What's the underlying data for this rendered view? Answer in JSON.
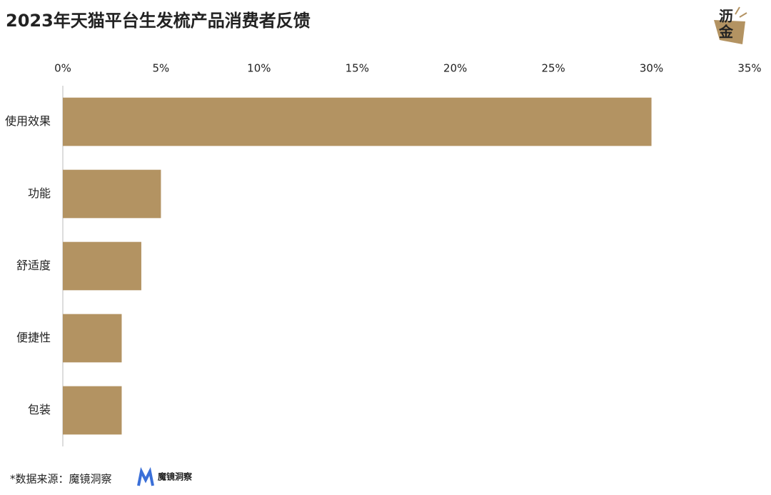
{
  "chart_data": {
    "type": "bar",
    "orientation": "horizontal",
    "title": "2023年天猫平台生发梳产品消费者反馈",
    "categories": [
      "使用效果",
      "功能",
      "舒适度",
      "便捷性",
      "包装"
    ],
    "values": [
      30,
      5,
      4,
      3,
      3
    ],
    "color": "#b39362",
    "xlim": [
      0,
      35
    ],
    "xticks": [
      {
        "value": 0,
        "label": "0%"
      },
      {
        "value": 5,
        "label": "5%"
      },
      {
        "value": 10,
        "label": "10%"
      },
      {
        "value": 15,
        "label": "15%"
      },
      {
        "value": 20,
        "label": "20%"
      },
      {
        "value": 25,
        "label": "25%"
      },
      {
        "value": 30,
        "label": "30%"
      },
      {
        "value": 35,
        "label": "35%"
      }
    ],
    "grid": false
  },
  "source": "*数据来源：魔镜洞察",
  "source_logo": "魔镜洞察",
  "logo": "沥金"
}
